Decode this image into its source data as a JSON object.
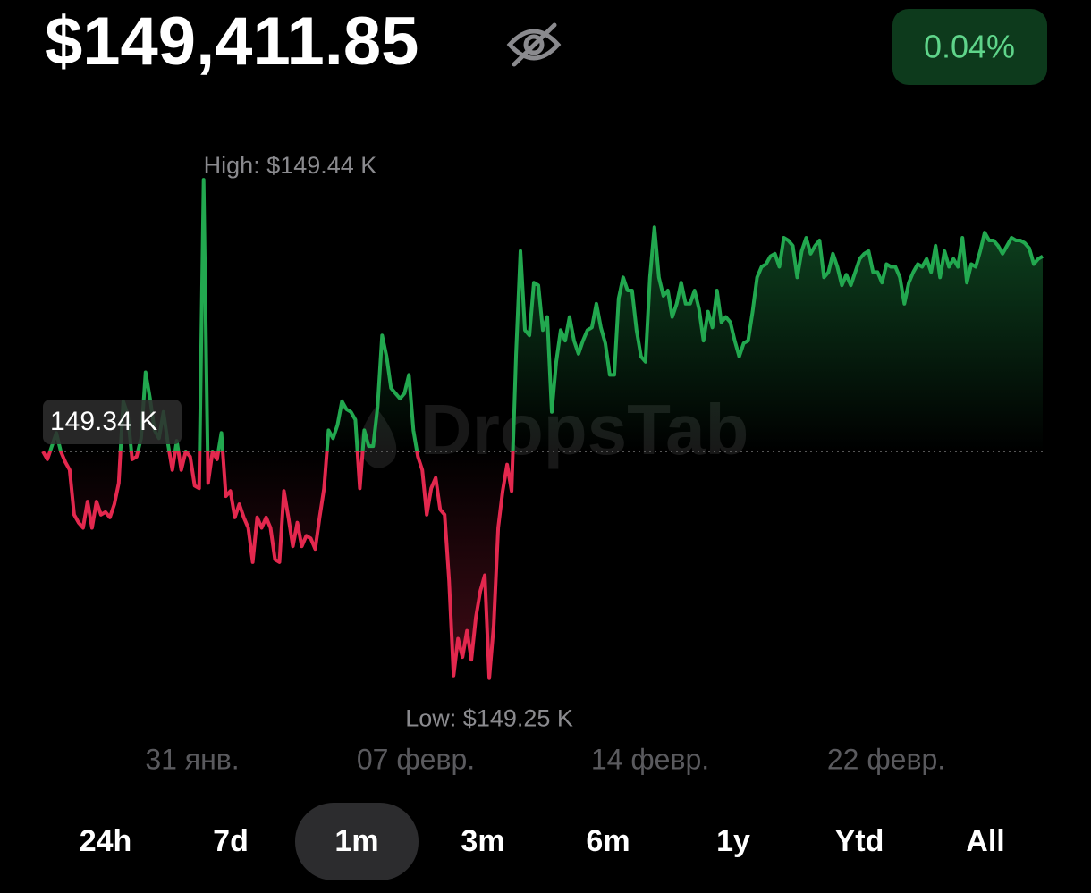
{
  "balance": "$149,411.85",
  "change": "0.04%",
  "watermark": "DropsTab",
  "tabs": [
    "24h",
    "7d",
    "1m",
    "3m",
    "6m",
    "1y",
    "Ytd",
    "All"
  ],
  "active_tab": 2,
  "chart_data": {
    "type": "line",
    "up_color": "#22a84f",
    "down_color": "#e3284e",
    "ylim": [
      149.24,
      149.45
    ],
    "baseline": {
      "value": 149.34,
      "label": "149.34 K"
    },
    "high": {
      "value": 149.44,
      "label": "High: $149.44 K"
    },
    "low": {
      "value": 149.25,
      "label": "Low: $149.25 K"
    },
    "xtick_labels": [
      "31 янв.",
      "07 февр.",
      "14 февр.",
      "22 февр."
    ],
    "values": [
      149.34,
      149.337,
      149.342,
      149.347,
      149.34,
      149.336,
      149.333,
      149.316,
      149.313,
      149.311,
      149.321,
      149.311,
      149.321,
      149.316,
      149.317,
      149.315,
      149.32,
      149.328,
      149.359,
      149.354,
      149.337,
      149.338,
      149.345,
      149.37,
      149.36,
      149.348,
      149.345,
      149.355,
      149.343,
      149.333,
      149.344,
      149.333,
      149.34,
      149.338,
      149.327,
      149.326,
      149.443,
      149.328,
      149.34,
      149.337,
      149.347,
      149.323,
      149.325,
      149.315,
      149.32,
      149.315,
      149.311,
      149.298,
      149.315,
      149.311,
      149.315,
      149.311,
      149.299,
      149.298,
      149.325,
      149.315,
      149.304,
      149.313,
      149.304,
      149.308,
      149.307,
      149.303,
      149.315,
      149.326,
      149.348,
      149.345,
      149.35,
      149.359,
      149.356,
      149.355,
      149.352,
      149.326,
      149.348,
      149.342,
      149.342,
      149.357,
      149.384,
      149.376,
      149.364,
      149.362,
      149.36,
      149.362,
      149.369,
      149.348,
      149.338,
      149.333,
      149.316,
      149.326,
      149.33,
      149.318,
      149.316,
      149.291,
      149.255,
      149.269,
      149.262,
      149.272,
      149.261,
      149.277,
      149.287,
      149.293,
      149.254,
      149.274,
      149.311,
      149.325,
      149.335,
      149.325,
      149.377,
      149.416,
      149.386,
      149.384,
      149.404,
      149.403,
      149.386,
      149.391,
      149.355,
      149.374,
      149.386,
      149.382,
      149.391,
      149.382,
      149.377,
      149.382,
      149.386,
      149.387,
      149.396,
      149.387,
      149.381,
      149.369,
      149.369,
      149.398,
      149.406,
      149.401,
      149.401,
      149.386,
      149.376,
      149.374,
      149.406,
      149.425,
      149.406,
      149.399,
      149.401,
      149.391,
      149.396,
      149.404,
      149.396,
      149.396,
      149.401,
      149.394,
      149.382,
      149.393,
      149.387,
      149.401,
      149.389,
      149.391,
      149.389,
      149.382,
      149.376,
      149.381,
      149.382,
      149.393,
      149.406,
      149.41,
      149.411,
      149.414,
      149.415,
      149.41,
      149.421,
      149.42,
      149.418,
      149.406,
      149.416,
      149.421,
      149.415,
      149.418,
      149.42,
      149.406,
      149.408,
      149.415,
      149.41,
      149.403,
      149.407,
      149.403,
      149.408,
      149.413,
      149.415,
      149.416,
      149.408,
      149.408,
      149.404,
      149.411,
      149.41,
      149.41,
      149.406,
      149.396,
      149.404,
      149.408,
      149.411,
      149.41,
      149.413,
      149.408,
      149.418,
      149.406,
      149.416,
      149.41,
      149.413,
      149.41,
      149.421,
      149.404,
      149.411,
      149.41,
      149.416,
      149.423,
      149.42,
      149.42,
      149.418,
      149.415,
      149.418,
      149.421,
      149.42,
      149.42,
      149.419,
      149.417,
      149.411,
      149.413,
      149.414
    ]
  }
}
